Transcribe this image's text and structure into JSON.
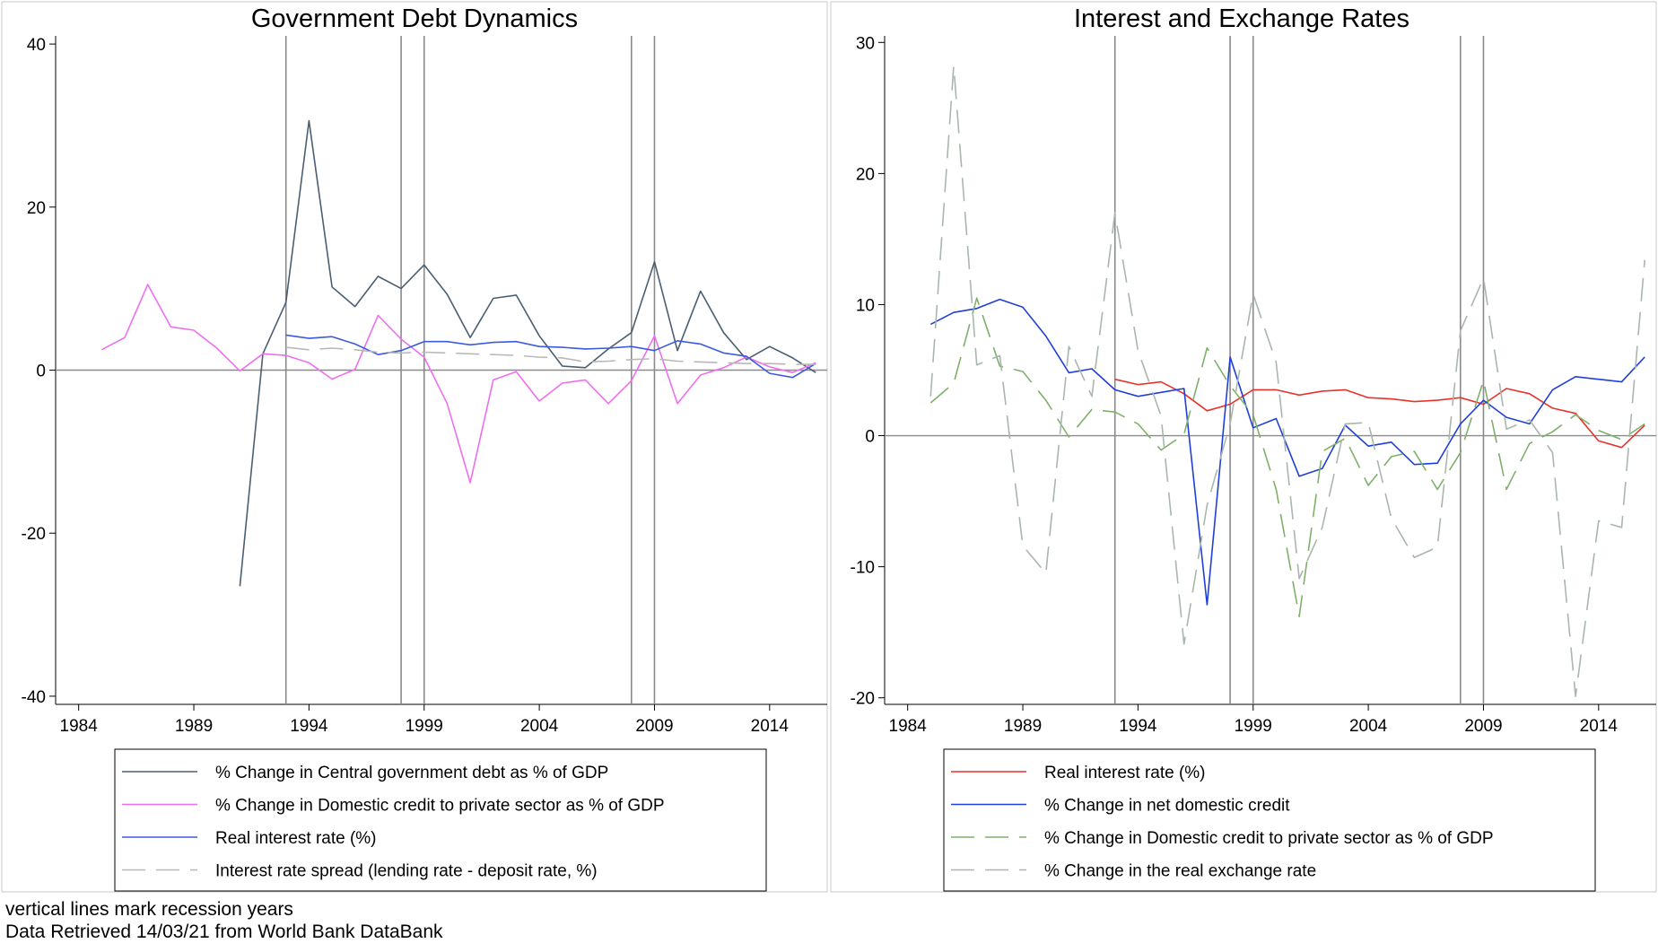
{
  "chart_data": [
    {
      "type": "line",
      "title": "Government Debt Dynamics",
      "xlim": [
        1983,
        2016.5
      ],
      "ylim": [
        -41,
        41
      ],
      "xticks": [
        1984,
        1989,
        1994,
        1999,
        2004,
        2009,
        2014
      ],
      "yticks": [
        -40,
        -20,
        0,
        20,
        40
      ],
      "reference_line_y": 0,
      "recession_years": [
        1993,
        1998,
        1999,
        2008,
        2009
      ],
      "legend_position": "bottom",
      "series": [
        {
          "name": "% Change in Central government debt as % of GDP",
          "color": "#4a5f71",
          "dash": "solid",
          "x": [
            1991,
            1992,
            1993,
            1994,
            1995,
            1996,
            1997,
            1998,
            1999,
            2000,
            2001,
            2002,
            2003,
            2004,
            2005,
            2006,
            2007,
            2008,
            2009,
            2010,
            2011,
            2012,
            2013,
            2014,
            2015,
            2016
          ],
          "y": [
            -26.5,
            2,
            8.3,
            30.6,
            10.2,
            7.8,
            11.5,
            10.0,
            12.9,
            9.3,
            4.0,
            8.8,
            9.2,
            4.2,
            0.5,
            0.3,
            2.6,
            4.6,
            13.3,
            2.4,
            9.7,
            4.6,
            1.3,
            2.9,
            1.5,
            -0.3
          ]
        },
        {
          "name": "% Change in Domestic credit to private sector as % of GDP",
          "color": "#ee6fee",
          "dash": "solid",
          "x": [
            1985,
            1986,
            1987,
            1988,
            1989,
            1990,
            1991,
            1992,
            1993,
            1994,
            1995,
            1996,
            1997,
            1998,
            1999,
            2000,
            2001,
            2002,
            2003,
            2004,
            2005,
            2006,
            2007,
            2008,
            2009,
            2010,
            2011,
            2012,
            2013,
            2014,
            2015,
            2016
          ],
          "y": [
            2.5,
            4.0,
            10.5,
            5.3,
            4.9,
            2.7,
            -0.1,
            2.0,
            1.8,
            0.9,
            -1.1,
            0.1,
            6.7,
            3.8,
            1.6,
            -4.1,
            -13.8,
            -1.2,
            -0.2,
            -3.8,
            -1.6,
            -1.2,
            -4.1,
            -1.3,
            4.2,
            -4.1,
            -0.6,
            0.3,
            1.6,
            0.4,
            -0.3,
            0.9
          ]
        },
        {
          "name": "Real interest rate (%)",
          "color": "#3d5ae0",
          "dash": "solid",
          "x": [
            1993,
            1994,
            1995,
            1996,
            1997,
            1998,
            1999,
            2000,
            2001,
            2002,
            2003,
            2004,
            2005,
            2006,
            2007,
            2008,
            2009,
            2010,
            2011,
            2012,
            2013,
            2014,
            2015,
            2016
          ],
          "y": [
            4.3,
            3.9,
            4.1,
            3.2,
            1.9,
            2.4,
            3.5,
            3.5,
            3.1,
            3.4,
            3.5,
            2.9,
            2.8,
            2.6,
            2.7,
            2.9,
            2.4,
            3.6,
            3.2,
            2.1,
            1.7,
            -0.4,
            -0.9,
            0.8
          ]
        },
        {
          "name": "Interest rate spread (lending rate - deposit rate, %)",
          "color": "#b8b8b8",
          "dash": "long",
          "x": [
            1993,
            1994,
            1995,
            1996,
            1997,
            1998,
            1999,
            2000,
            2001,
            2002,
            2003,
            2004,
            2005,
            2006,
            2007,
            2008,
            2009,
            2010,
            2011,
            2012,
            2013,
            2014,
            2015,
            2016
          ],
          "y": [
            2.8,
            2.5,
            2.7,
            2.5,
            2.2,
            2.1,
            2.2,
            2.1,
            2.0,
            1.9,
            1.8,
            1.6,
            1.5,
            1.0,
            1.1,
            1.3,
            1.4,
            1.1,
            1.0,
            0.9,
            0.8,
            0.8,
            0.7,
            0.7
          ]
        }
      ]
    },
    {
      "type": "line",
      "title": "Interest and Exchange Rates",
      "xlim": [
        1983,
        2016.5
      ],
      "ylim": [
        -20.5,
        30.5
      ],
      "xticks": [
        1984,
        1989,
        1994,
        1999,
        2004,
        2009,
        2014
      ],
      "yticks": [
        -20,
        -10,
        0,
        10,
        20,
        30
      ],
      "reference_line_y": 0,
      "recession_years": [
        1993,
        1998,
        1999,
        2008,
        2009
      ],
      "legend_position": "bottom",
      "series": [
        {
          "name": "Real interest rate (%)",
          "color": "#e8322b",
          "dash": "solid",
          "x": [
            1993,
            1994,
            1995,
            1996,
            1997,
            1998,
            1999,
            2000,
            2001,
            2002,
            2003,
            2004,
            2005,
            2006,
            2007,
            2008,
            2009,
            2010,
            2011,
            2012,
            2013,
            2014,
            2015,
            2016
          ],
          "y": [
            4.3,
            3.9,
            4.1,
            3.2,
            1.9,
            2.4,
            3.5,
            3.5,
            3.1,
            3.4,
            3.5,
            2.9,
            2.8,
            2.6,
            2.7,
            2.9,
            2.4,
            3.6,
            3.2,
            2.1,
            1.7,
            -0.4,
            -0.9,
            0.8
          ]
        },
        {
          "name": "% Change in net domestic credit",
          "color": "#1f3fd8",
          "dash": "solid",
          "x": [
            1985,
            1986,
            1987,
            1988,
            1989,
            1990,
            1991,
            1992,
            1993,
            1994,
            1995,
            1996,
            1997,
            1998,
            1999,
            2000,
            2001,
            2002,
            2003,
            2004,
            2005,
            2006,
            2007,
            2008,
            2009,
            2010,
            2011,
            2012,
            2013,
            2014,
            2015,
            2016
          ],
          "y": [
            8.5,
            9.4,
            9.7,
            10.4,
            9.8,
            7.6,
            4.8,
            5.1,
            3.5,
            3.0,
            3.3,
            3.6,
            -12.9,
            6.0,
            0.6,
            1.3,
            -3.1,
            -2.5,
            0.8,
            -0.8,
            -0.5,
            -2.2,
            -2.1,
            0.9,
            2.7,
            1.4,
            0.9,
            3.5,
            4.5,
            4.3,
            4.1,
            6.0
          ]
        },
        {
          "name": "% Change in Domestic credit to private sector as % of GDP",
          "color": "#7fb06a",
          "dash": "long",
          "x": [
            1985,
            1986,
            1987,
            1988,
            1989,
            1990,
            1991,
            1992,
            1993,
            1994,
            1995,
            1996,
            1997,
            1998,
            1999,
            2000,
            2001,
            2002,
            2003,
            2004,
            2005,
            2006,
            2007,
            2008,
            2009,
            2010,
            2011,
            2012,
            2013,
            2014,
            2015,
            2016
          ],
          "y": [
            2.5,
            4.0,
            10.5,
            5.3,
            4.9,
            2.7,
            -0.1,
            2.0,
            1.8,
            0.9,
            -1.1,
            0.1,
            6.7,
            3.8,
            1.6,
            -4.1,
            -13.8,
            -1.2,
            -0.2,
            -3.8,
            -1.6,
            -1.2,
            -4.1,
            -1.3,
            4.2,
            -4.1,
            -0.6,
            0.3,
            1.6,
            0.4,
            -0.3,
            0.9
          ]
        },
        {
          "name": "% Change in the real exchange rate",
          "color": "#a9b6ad",
          "dash": "long",
          "x": [
            1985,
            1986,
            1987,
            1988,
            1989,
            1990,
            1991,
            1992,
            1993,
            1994,
            1995,
            1996,
            1997,
            1998,
            1999,
            2000,
            2001,
            2002,
            2003,
            2004,
            2005,
            2006,
            2007,
            2008,
            2009,
            2010,
            2011,
            2012,
            2013,
            2014,
            2015,
            2016
          ],
          "y": [
            3.0,
            28.2,
            5.4,
            6.1,
            -8.4,
            -10.5,
            6.8,
            3.0,
            17.0,
            6.5,
            1.5,
            -15.9,
            -5.3,
            0.9,
            10.8,
            5.6,
            -10.9,
            -7.0,
            0.9,
            1.0,
            -6.3,
            -9.3,
            -8.5,
            8.0,
            12.0,
            0.5,
            1.2,
            -1.3,
            -19.9,
            -6.5,
            -7.0,
            13.4
          ]
        }
      ]
    }
  ],
  "notes": {
    "line1": "vertical lines mark recession years",
    "line2": "Data Retrieved 14/03/21 from World Bank DataBank"
  }
}
